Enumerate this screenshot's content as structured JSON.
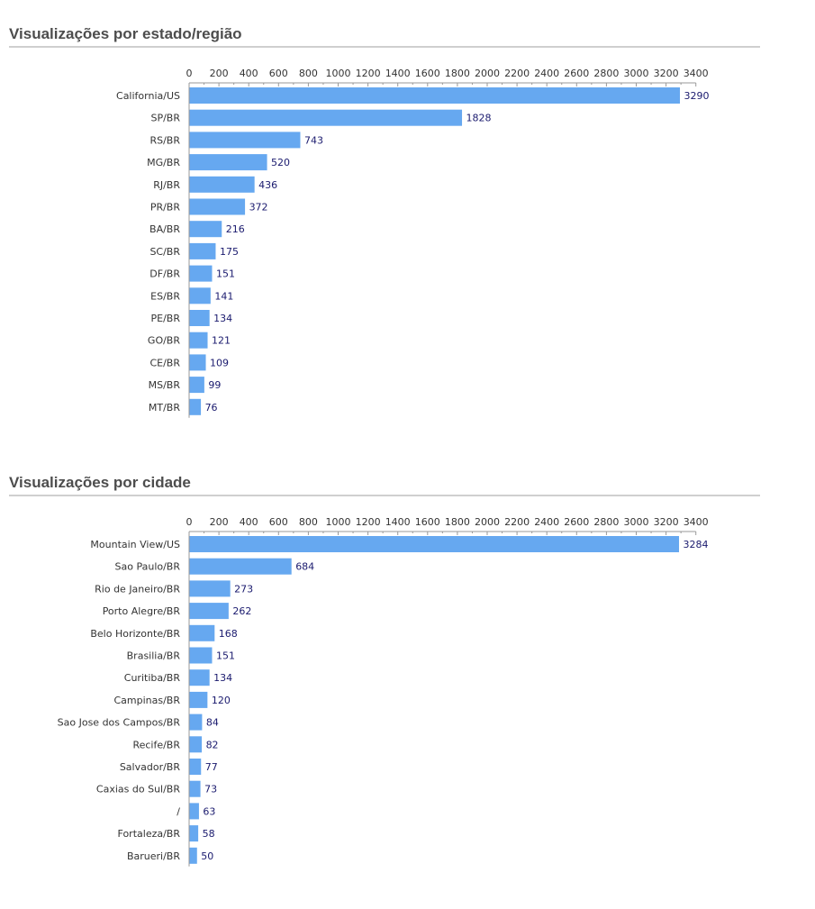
{
  "sections": [
    {
      "title": "Visualizações por estado/região"
    },
    {
      "title": "Visualizações por cidade"
    }
  ],
  "colors": {
    "bar": "#66a8f0",
    "value_label": "#1a1a6e",
    "category_label": "#333333",
    "tick_label": "#333333",
    "axis": "#999999"
  },
  "chart_data": [
    {
      "type": "bar",
      "orientation": "horizontal",
      "title": "Visualizações por estado/região",
      "xlabel": "",
      "ylabel": "",
      "xlim": [
        0,
        3400
      ],
      "xticks": [
        0,
        200,
        400,
        600,
        800,
        1000,
        1200,
        1400,
        1600,
        1800,
        2000,
        2200,
        2400,
        2600,
        2800,
        3000,
        3200,
        3400
      ],
      "axis_position": "top",
      "grid": false,
      "legend": "none",
      "categories": [
        "California/US",
        "SP/BR",
        "RS/BR",
        "MG/BR",
        "RJ/BR",
        "PR/BR",
        "BA/BR",
        "SC/BR",
        "DF/BR",
        "ES/BR",
        "PE/BR",
        "GO/BR",
        "CE/BR",
        "MS/BR",
        "MT/BR"
      ],
      "values": [
        3290,
        1828,
        743,
        520,
        436,
        372,
        216,
        175,
        151,
        141,
        134,
        121,
        109,
        99,
        76
      ]
    },
    {
      "type": "bar",
      "orientation": "horizontal",
      "title": "Visualizações por cidade",
      "xlabel": "",
      "ylabel": "",
      "xlim": [
        0,
        3400
      ],
      "xticks": [
        0,
        200,
        400,
        600,
        800,
        1000,
        1200,
        1400,
        1600,
        1800,
        2000,
        2200,
        2400,
        2600,
        2800,
        3000,
        3200,
        3400
      ],
      "axis_position": "top",
      "grid": false,
      "legend": "none",
      "categories": [
        "Mountain View/US",
        "Sao Paulo/BR",
        "Rio de Janeiro/BR",
        "Porto Alegre/BR",
        "Belo Horizonte/BR",
        "Brasilia/BR",
        "Curitiba/BR",
        "Campinas/BR",
        "Sao Jose dos Campos/BR",
        "Recife/BR",
        "Salvador/BR",
        "Caxias do Sul/BR",
        "/",
        "Fortaleza/BR",
        "Barueri/BR"
      ],
      "values": [
        3284,
        684,
        273,
        262,
        168,
        151,
        134,
        120,
        84,
        82,
        77,
        73,
        63,
        58,
        50
      ]
    }
  ]
}
